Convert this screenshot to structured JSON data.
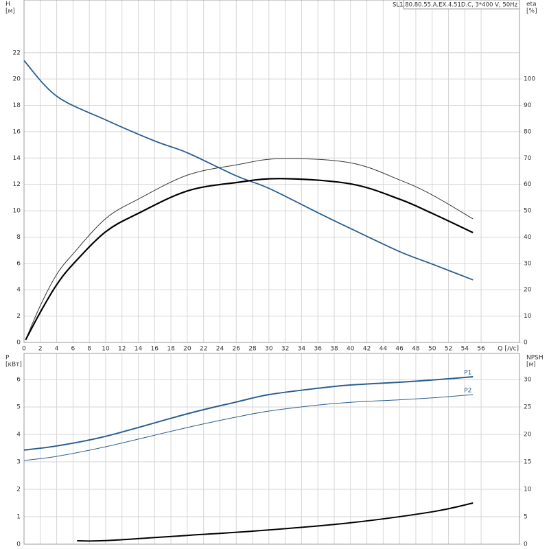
{
  "chart_data": [
    {
      "type": "line",
      "title": "SL1.80.80.55.A.EX.4.51D.C, 3*400 V, 50Hz",
      "ylabel": "H",
      "yunit": "[м]",
      "y2label": "eta",
      "y2unit": "[%]",
      "xlabel": "Q [л/с]",
      "xlim": [
        0,
        60.7
      ],
      "xticks": [
        0,
        2,
        4,
        6,
        8,
        10,
        12,
        14,
        16,
        18,
        20,
        22,
        24,
        26,
        28,
        30,
        32,
        34,
        36,
        38,
        40,
        42,
        44,
        46,
        48,
        50,
        52,
        54,
        56
      ],
      "ylim": [
        0,
        26
      ],
      "yticks": [
        0,
        2,
        4,
        6,
        8,
        10,
        12,
        14,
        16,
        18,
        20,
        22
      ],
      "y2lim": [
        0,
        130
      ],
      "y2ticks": [
        0,
        10,
        20,
        30,
        40,
        50,
        60,
        70,
        80,
        90,
        100
      ],
      "grid": true,
      "series": [
        {
          "color": "#2a5d8f",
          "width": 1.8,
          "x": [
            0,
            4,
            10,
            16,
            20,
            26,
            30,
            36,
            40,
            46,
            50,
            55
          ],
          "values": [
            21.4,
            18.7,
            16.9,
            15.3,
            14.4,
            12.65,
            11.7,
            9.85,
            8.65,
            6.9,
            5.95,
            4.75
          ]
        },
        {
          "color": "#333333",
          "width": 1,
          "axis": "y2",
          "x": [
            0.2,
            2,
            4,
            6,
            10,
            14,
            20,
            26,
            31.5,
            40,
            46,
            50,
            55
          ],
          "values": [
            1,
            14,
            25.8,
            33.6,
            47,
            54.4,
            63.5,
            67.4,
            69.8,
            68.2,
            61.7,
            56,
            46.9
          ]
        },
        {
          "color": "#000000",
          "width": 2.2,
          "axis": "y2",
          "x": [
            0.2,
            2,
            4,
            6,
            10,
            14,
            20,
            26,
            31.5,
            40,
            46,
            50,
            55
          ],
          "values": [
            1,
            11.5,
            21.9,
            29.7,
            42,
            49,
            57.5,
            60.7,
            62.2,
            60.2,
            54.4,
            49,
            41.7
          ]
        }
      ]
    },
    {
      "type": "line",
      "ylabel": "P",
      "yunit": "[кВт]",
      "y2label": "NPSH",
      "y2unit": "[м]",
      "xlim": [
        0,
        60.7
      ],
      "ylim": [
        0,
        6.95
      ],
      "yticks": [
        0,
        1,
        2,
        3,
        4,
        5,
        6
      ],
      "y2lim": [
        0,
        34.75
      ],
      "y2ticks": [
        0,
        5,
        10,
        15,
        20,
        25,
        30
      ],
      "grid": true,
      "series": [
        {
          "name": "P1",
          "color": "#2a5d8f",
          "width": 2,
          "x": [
            0,
            4,
            10,
            20,
            26,
            30,
            36,
            40,
            46,
            50,
            55
          ],
          "values": [
            3.43,
            3.58,
            3.93,
            4.75,
            5.18,
            5.45,
            5.68,
            5.8,
            5.9,
            5.98,
            6.1
          ]
        },
        {
          "name": "P2",
          "color": "#2a5d8f",
          "width": 1,
          "x": [
            0,
            4,
            10,
            20,
            26,
            30,
            36,
            40,
            46,
            50,
            55
          ],
          "values": [
            3.05,
            3.2,
            3.55,
            4.25,
            4.63,
            4.85,
            5.07,
            5.17,
            5.26,
            5.33,
            5.45
          ]
        },
        {
          "color": "#000000",
          "width": 2,
          "axis": "y2",
          "x": [
            6.5,
            10,
            20,
            30,
            40,
            50,
            55
          ],
          "values": [
            0.63,
            0.65,
            1.6,
            2.6,
            3.9,
            5.9,
            7.5
          ]
        }
      ]
    }
  ]
}
